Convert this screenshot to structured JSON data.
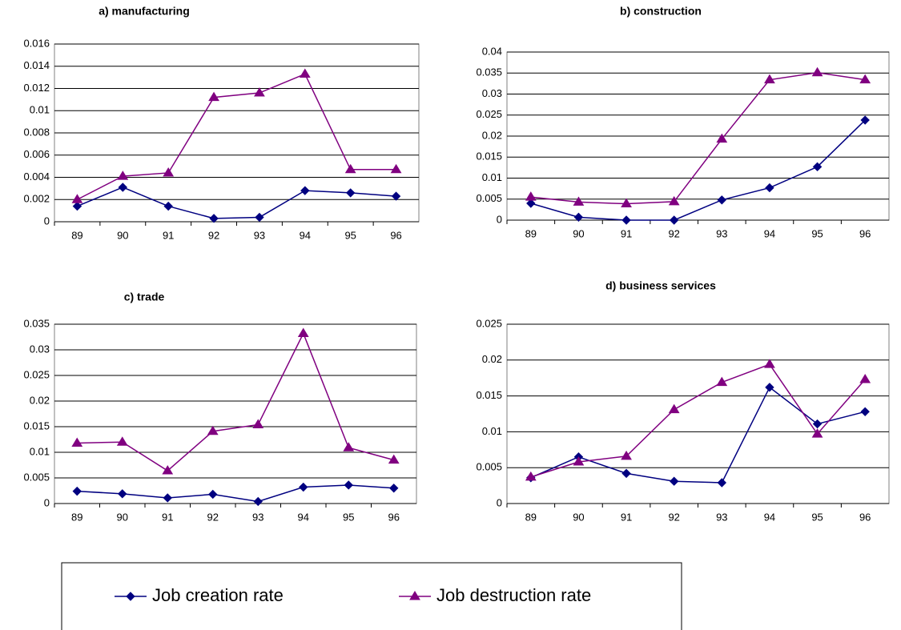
{
  "legend": {
    "series": [
      {
        "name": "Job creation rate",
        "color": "#000080",
        "marker": "diamond"
      },
      {
        "name": "Job destruction rate",
        "color": "#800080",
        "marker": "triangle"
      }
    ]
  },
  "chart_data": [
    {
      "type": "line",
      "title": "a) manufacturing",
      "categories": [
        "89",
        "90",
        "91",
        "92",
        "93",
        "94",
        "95",
        "96"
      ],
      "series": [
        {
          "values": [
            0.0014,
            0.0031,
            0.0014,
            0.0003,
            0.0004,
            0.0028,
            0.0026,
            0.0023
          ]
        },
        {
          "values": [
            0.002,
            0.0041,
            0.0044,
            0.0112,
            0.0116,
            0.0133,
            0.0047,
            0.0047
          ]
        }
      ],
      "ylim": [
        0,
        0.016
      ],
      "yticks": [
        0,
        0.002,
        0.004,
        0.006,
        0.008,
        0.01,
        0.012,
        0.014,
        0.016
      ],
      "grid": true
    },
    {
      "type": "line",
      "title": "b) construction",
      "categories": [
        "89",
        "90",
        "91",
        "92",
        "93",
        "94",
        "95",
        "96"
      ],
      "series": [
        {
          "values": [
            0.004,
            0.0007,
            0,
            0,
            0.0048,
            0.0077,
            0.0127,
            0.0238
          ]
        },
        {
          "values": [
            0.0055,
            0.0043,
            0.0039,
            0.0044,
            0.0193,
            0.0334,
            0.0351,
            0.0334
          ]
        }
      ],
      "ylim": [
        0,
        0.04
      ],
      "yticks": [
        0,
        0.005,
        0.01,
        0.015,
        0.02,
        0.025,
        0.03,
        0.035,
        0.04
      ],
      "grid": true
    },
    {
      "type": "line",
      "title": "c) trade",
      "categories": [
        "89",
        "90",
        "91",
        "92",
        "93",
        "94",
        "95",
        "96"
      ],
      "series": [
        {
          "values": [
            0.0024,
            0.0019,
            0.0011,
            0.0018,
            0.0004,
            0.0032,
            0.0036,
            0.003
          ]
        },
        {
          "values": [
            0.0118,
            0.012,
            0.0064,
            0.0141,
            0.0154,
            0.0332,
            0.0109,
            0.0085
          ]
        }
      ],
      "ylim": [
        0,
        0.035
      ],
      "yticks": [
        0,
        0.005,
        0.01,
        0.015,
        0.02,
        0.025,
        0.03,
        0.035
      ],
      "grid": true
    },
    {
      "type": "line",
      "title": "d) business services",
      "categories": [
        "89",
        "90",
        "91",
        "92",
        "93",
        "94",
        "95",
        "96"
      ],
      "series": [
        {
          "values": [
            0.0036,
            0.0065,
            0.0042,
            0.0031,
            0.0029,
            0.0162,
            0.0111,
            0.0128
          ]
        },
        {
          "values": [
            0.0037,
            0.0058,
            0.0066,
            0.0131,
            0.0169,
            0.0194,
            0.0097,
            0.0173
          ]
        }
      ],
      "ylim": [
        0,
        0.025
      ],
      "yticks": [
        0,
        0.005,
        0.01,
        0.015,
        0.02,
        0.025
      ],
      "grid": true
    }
  ]
}
